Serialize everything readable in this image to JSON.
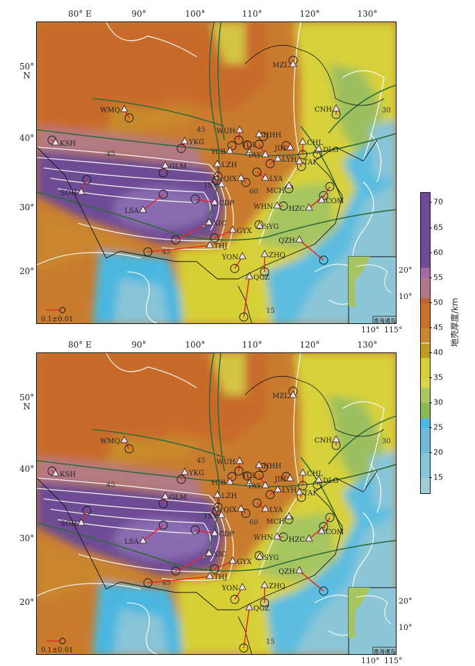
{
  "axes": {
    "lon_labels": [
      "80° E",
      "90°",
      "100°",
      "110°",
      "120°",
      "130°"
    ],
    "lat_labels": [
      "50°\nN",
      "40°",
      "30°",
      "20°"
    ]
  },
  "panels": [
    {
      "id": "top",
      "scale_label": "0.1±0.01"
    },
    {
      "id": "bottom",
      "scale_label": "0.1±0.01"
    }
  ],
  "stations": [
    "MZL",
    "WMQ",
    "CNH",
    "KSH",
    "YKG",
    "WUH",
    "HHH",
    "YUL",
    "YCB",
    "CHL",
    "DLG",
    "JIH",
    "TAY",
    "LZH",
    "GLM",
    "LYH",
    "TAI",
    "QIX",
    "LYA",
    "MCH",
    "TSY",
    "SOH",
    "LSA",
    "CDP",
    "WHN",
    "HZC",
    "COM",
    "XIC",
    "GYX",
    "SYG",
    "THJ",
    "YON",
    "ZHQ",
    "QZH",
    "QGZ"
  ],
  "contour_labels": [
    "45",
    "45",
    "45",
    "60",
    "15",
    "30"
  ],
  "inset": {
    "title": "南海诸岛",
    "lat_labels": [
      "20°",
      "10°"
    ],
    "lon_labels": [
      "110°",
      "115°"
    ]
  },
  "colorbar": {
    "title": "地壳厚度/km",
    "ticks": [
      70,
      65,
      60,
      55,
      50,
      45,
      40,
      35,
      30,
      25,
      20,
      15
    ],
    "range": [
      12,
      72
    ],
    "bands": [
      {
        "from": 12,
        "to": 15,
        "color": "#a3ced3"
      },
      {
        "from": 15,
        "to": 20,
        "color": "#88c4d8"
      },
      {
        "from": 20,
        "to": 25,
        "color": "#6dbad9"
      },
      {
        "from": 25,
        "to": 27,
        "color": "#4cb7e0"
      },
      {
        "from": 27,
        "to": 30,
        "color": "#8ab955"
      },
      {
        "from": 30,
        "to": 33,
        "color": "#abc663"
      },
      {
        "from": 33,
        "to": 35,
        "color": "#d8d64c"
      },
      {
        "from": 35,
        "to": 39,
        "color": "#d6cf36"
      },
      {
        "from": 39,
        "to": 42,
        "color": "#c19a28"
      },
      {
        "from": 42,
        "to": 45,
        "color": "#c9862f"
      },
      {
        "from": 45,
        "to": 50,
        "color": "#c6722f"
      },
      {
        "from": 50,
        "to": 51,
        "color": "#c0622f"
      },
      {
        "from": 51,
        "to": 55,
        "color": "#b07985"
      },
      {
        "from": 55,
        "to": 57,
        "color": "#a26aa2"
      },
      {
        "from": 57,
        "to": 72,
        "color": "#6e4c95"
      }
    ]
  },
  "colors": {
    "station_fill": "#f3dfe8",
    "vector": "#e8262a",
    "fault": "#2e6b3a",
    "contour": "#ffffff"
  }
}
